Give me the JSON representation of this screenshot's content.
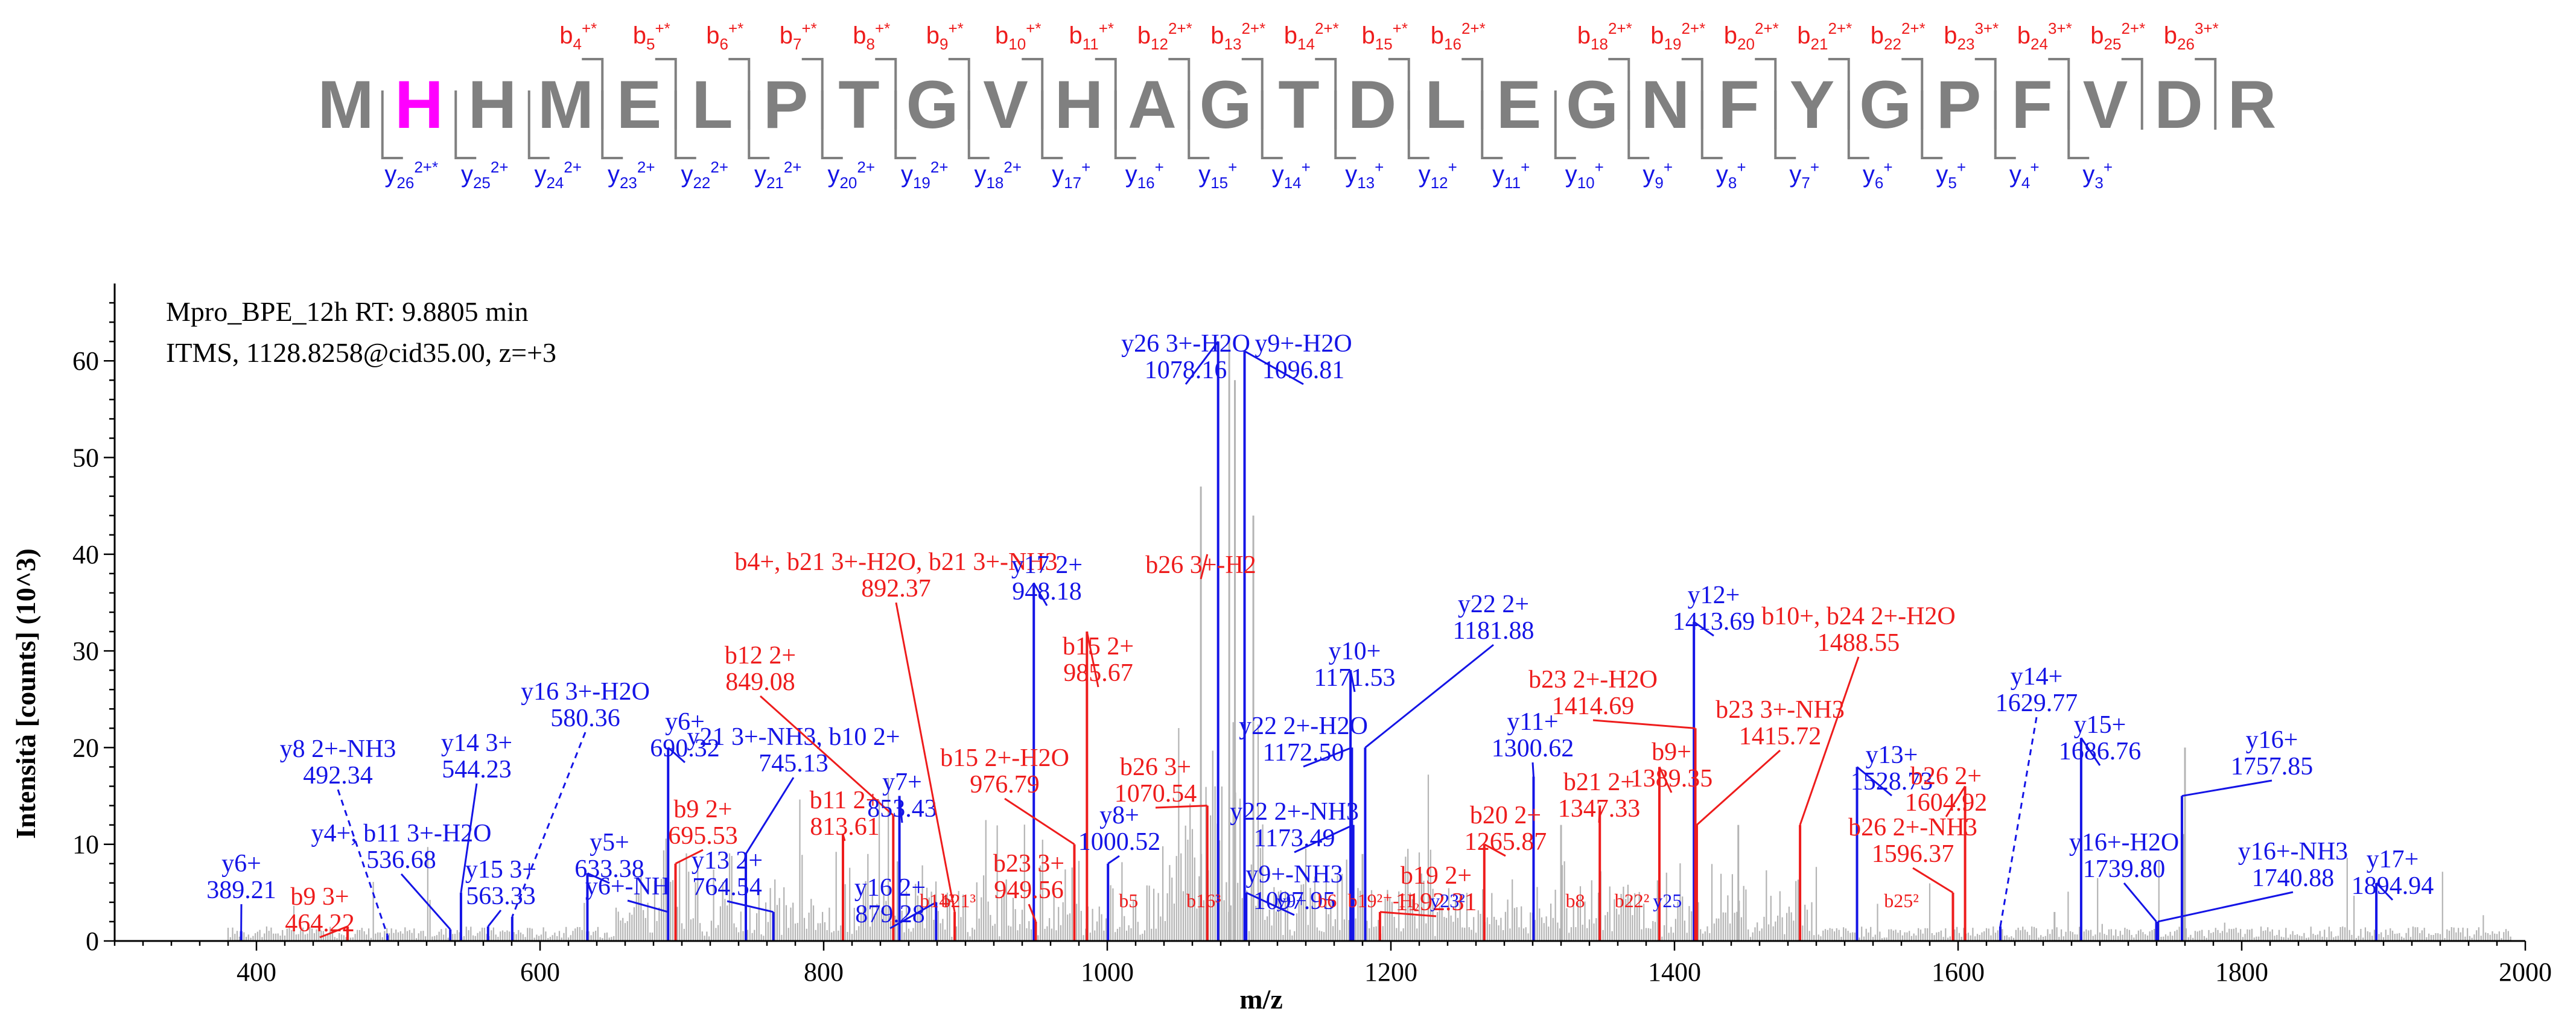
{
  "colors": {
    "b": "#ee1c1c",
    "y": "#1414e6",
    "seq": "#808080",
    "highlight": "#ff00ff",
    "bg_peak": "#b4b4b4"
  },
  "sequence": {
    "residues": [
      "M",
      "H",
      "H",
      "M",
      "E",
      "L",
      "P",
      "T",
      "G",
      "V",
      "H",
      "A",
      "G",
      "T",
      "D",
      "L",
      "E",
      "G",
      "N",
      "F",
      "Y",
      "G",
      "P",
      "F",
      "V",
      "D",
      "R"
    ],
    "highlight_index": 1,
    "b_ions": [
      {
        "after": 4,
        "n": "4",
        "z": "+*"
      },
      {
        "after": 5,
        "n": "5",
        "z": "+*"
      },
      {
        "after": 6,
        "n": "6",
        "z": "+*"
      },
      {
        "after": 7,
        "n": "7",
        "z": "+*"
      },
      {
        "after": 8,
        "n": "8",
        "z": "+*"
      },
      {
        "after": 9,
        "n": "9",
        "z": "+*"
      },
      {
        "after": 10,
        "n": "10",
        "z": "+*"
      },
      {
        "after": 11,
        "n": "11",
        "z": "+*"
      },
      {
        "after": 12,
        "n": "12",
        "z": "2+*"
      },
      {
        "after": 13,
        "n": "13",
        "z": "2+*"
      },
      {
        "after": 14,
        "n": "14",
        "z": "2+*"
      },
      {
        "after": 15,
        "n": "15",
        "z": "+*"
      },
      {
        "after": 16,
        "n": "16",
        "z": "2+*"
      },
      {
        "after": 18,
        "n": "18",
        "z": "2+*"
      },
      {
        "after": 19,
        "n": "19",
        "z": "2+*"
      },
      {
        "after": 20,
        "n": "20",
        "z": "2+*"
      },
      {
        "after": 21,
        "n": "21",
        "z": "2+*"
      },
      {
        "after": 22,
        "n": "22",
        "z": "2+*"
      },
      {
        "after": 23,
        "n": "23",
        "z": "3+*"
      },
      {
        "after": 24,
        "n": "24",
        "z": "3+*"
      },
      {
        "after": 25,
        "n": "25",
        "z": "2+*"
      },
      {
        "after": 26,
        "n": "26",
        "z": "3+*"
      }
    ],
    "y_ions": [
      {
        "after": 1,
        "n": "26",
        "z": "2+*"
      },
      {
        "after": 2,
        "n": "25",
        "z": "2+"
      },
      {
        "after": 3,
        "n": "24",
        "z": "2+"
      },
      {
        "after": 4,
        "n": "23",
        "z": "2+"
      },
      {
        "after": 5,
        "n": "22",
        "z": "2+"
      },
      {
        "after": 6,
        "n": "21",
        "z": "2+"
      },
      {
        "after": 7,
        "n": "20",
        "z": "2+"
      },
      {
        "after": 8,
        "n": "19",
        "z": "2+"
      },
      {
        "after": 9,
        "n": "18",
        "z": "2+"
      },
      {
        "after": 10,
        "n": "17",
        "z": "+"
      },
      {
        "after": 11,
        "n": "16",
        "z": "+"
      },
      {
        "after": 12,
        "n": "15",
        "z": "+"
      },
      {
        "after": 13,
        "n": "14",
        "z": "+"
      },
      {
        "after": 14,
        "n": "13",
        "z": "+"
      },
      {
        "after": 15,
        "n": "12",
        "z": "+"
      },
      {
        "after": 16,
        "n": "11",
        "z": "+"
      },
      {
        "after": 17,
        "n": "10",
        "z": "+"
      },
      {
        "after": 18,
        "n": "9",
        "z": "+"
      },
      {
        "after": 19,
        "n": "8",
        "z": "+"
      },
      {
        "after": 20,
        "n": "7",
        "z": "+"
      },
      {
        "after": 21,
        "n": "6",
        "z": "+"
      },
      {
        "after": 22,
        "n": "5",
        "z": "+"
      },
      {
        "after": 23,
        "n": "4",
        "z": "+"
      },
      {
        "after": 24,
        "n": "3",
        "z": "+"
      }
    ]
  },
  "info": {
    "line1": "Mpro_BPE_12h  RT: 9.8805 min",
    "line2": "ITMS, 1128.8258@cid35.00, z=+3"
  },
  "chart_data": {
    "type": "bar",
    "title": "",
    "xlabel": "m/z",
    "ylabel": "Intensità [counts] (10^3)",
    "xlim": [
      300,
      2000
    ],
    "ylim": [
      0,
      68
    ],
    "xticks": [
      400,
      600,
      800,
      1000,
      1200,
      1400,
      1600,
      1800,
      2000
    ],
    "yticks": [
      0,
      10,
      20,
      30,
      40,
      50,
      60
    ],
    "annotated_peaks": [
      {
        "ion": "y",
        "mz": 389.21,
        "intensity": 1.0
      },
      {
        "ion": "b",
        "mz": 464.22,
        "intensity": 1.5
      },
      {
        "ion": "y",
        "mz": 492.34,
        "intensity": 0.6
      },
      {
        "ion": "y",
        "mz": 536.68,
        "intensity": 1.2
      },
      {
        "ion": "y",
        "mz": 544.23,
        "intensity": 5.0
      },
      {
        "ion": "y",
        "mz": 563.33,
        "intensity": 1.5
      },
      {
        "ion": "y",
        "mz": 580.36,
        "intensity": 2.5
      },
      {
        "ion": "y",
        "mz": 633.38,
        "intensity": 7.0
      },
      {
        "ion": "y",
        "mz": 690.32,
        "intensity": 20.0
      },
      {
        "ion": "b",
        "mz": 695.53,
        "intensity": 8.0
      },
      {
        "ion": "y",
        "mz": 745.13,
        "intensity": 9.0
      },
      {
        "ion": "y",
        "mz": 764.54,
        "intensity": 3.0
      },
      {
        "ion": "b",
        "mz": 813.61,
        "intensity": 11.0
      },
      {
        "ion": "b",
        "mz": 849.08,
        "intensity": 13.0
      },
      {
        "ion": "y",
        "mz": 853.43,
        "intensity": 15.0
      },
      {
        "ion": "y",
        "mz": 879.28,
        "intensity": 4.0
      },
      {
        "ion": "b",
        "mz": 892.37,
        "intensity": 3.0
      },
      {
        "ion": "y",
        "mz": 948.18,
        "intensity": 37.0
      },
      {
        "ion": "b",
        "mz": 949.56,
        "intensity": 2.0
      },
      {
        "ion": "b",
        "mz": 976.79,
        "intensity": 10.0
      },
      {
        "ion": "b",
        "mz": 985.67,
        "intensity": 32.0
      },
      {
        "ion": "y",
        "mz": 1000.52,
        "intensity": 8.0
      },
      {
        "ion": "b",
        "mz": 1070.54,
        "intensity": 14.0
      },
      {
        "ion": "y",
        "mz": 1078.16,
        "intensity": 62.0
      },
      {
        "ion": "y",
        "mz": 1096.81,
        "intensity": 61.0
      },
      {
        "ion": "y",
        "mz": 1097.95,
        "intensity": 5.0
      },
      {
        "ion": "y",
        "mz": 1171.53,
        "intensity": 28.0
      },
      {
        "ion": "y",
        "mz": 1172.5,
        "intensity": 20.0
      },
      {
        "ion": "y",
        "mz": 1173.49,
        "intensity": 12.0
      },
      {
        "ion": "y",
        "mz": 1181.88,
        "intensity": 20.0
      },
      {
        "ion": "b",
        "mz": 1192.31,
        "intensity": 3.0
      },
      {
        "ion": "b",
        "mz": 1265.87,
        "intensity": 10.0
      },
      {
        "ion": "y",
        "mz": 1300.62,
        "intensity": 17.0
      },
      {
        "ion": "b",
        "mz": 1347.33,
        "intensity": 14.0
      },
      {
        "ion": "b",
        "mz": 1389.35,
        "intensity": 18.0
      },
      {
        "ion": "y",
        "mz": 1413.69,
        "intensity": 33.0
      },
      {
        "ion": "b",
        "mz": 1414.69,
        "intensity": 22.0
      },
      {
        "ion": "b",
        "mz": 1415.72,
        "intensity": 12.0
      },
      {
        "ion": "b",
        "mz": 1488.55,
        "intensity": 12.0
      },
      {
        "ion": "y",
        "mz": 1528.73,
        "intensity": 18.0
      },
      {
        "ion": "b",
        "mz": 1596.37,
        "intensity": 5.0
      },
      {
        "ion": "b",
        "mz": 1604.92,
        "intensity": 16.0
      },
      {
        "ion": "y",
        "mz": 1629.77,
        "intensity": 1.5
      },
      {
        "ion": "y",
        "mz": 1686.76,
        "intensity": 21.0
      },
      {
        "ion": "y",
        "mz": 1739.8,
        "intensity": 2.0
      },
      {
        "ion": "y",
        "mz": 1740.88,
        "intensity": 2.0
      },
      {
        "ion": "y",
        "mz": 1757.85,
        "intensity": 15.0
      },
      {
        "ion": "y",
        "mz": 1894.94,
        "intensity": 6.0
      }
    ],
    "small_labels": [
      {
        "ion": "b",
        "mz": 895,
        "label": "b21³"
      },
      {
        "ion": "b",
        "mz": 880,
        "label": "b14²"
      },
      {
        "ion": "b",
        "mz": 1015,
        "label": "b5"
      },
      {
        "ion": "b",
        "mz": 1068,
        "label": "b16³"
      },
      {
        "ion": "y",
        "mz": 1130,
        "label": "y9+"
      },
      {
        "ion": "b",
        "mz": 1155,
        "label": "b6"
      },
      {
        "ion": "b",
        "mz": 1195,
        "label": "b19²⁺-H₂"
      },
      {
        "ion": "y",
        "mz": 1240,
        "label": "y23²"
      },
      {
        "ion": "b",
        "mz": 1330,
        "label": "b8"
      },
      {
        "ion": "b",
        "mz": 1370,
        "label": "b22²"
      },
      {
        "ion": "y",
        "mz": 1395,
        "label": "y25"
      },
      {
        "ion": "b",
        "mz": 1560,
        "label": "b25²"
      }
    ],
    "labels": [
      {
        "ion": "y",
        "text": "y6+",
        "mz_line": "389.21"
      },
      {
        "ion": "b",
        "text": "b9 3+",
        "mz_line": "464.22"
      },
      {
        "ion": "y",
        "text": "y8 2+-NH3",
        "mz_line": "492.34"
      },
      {
        "ion": "y",
        "text": "y4+, b11 3+-H2O",
        "mz_line": "536.68"
      },
      {
        "ion": "y",
        "text": "y14 3+",
        "mz_line": "544.23"
      },
      {
        "ion": "y",
        "text": "y15 3+",
        "mz_line": "563.33"
      },
      {
        "ion": "y",
        "text": "y16 3+-H2O",
        "mz_line": "580.36"
      },
      {
        "ion": "y",
        "text": "y5+",
        "mz_line": "633.38"
      },
      {
        "ion": "y",
        "text": "y6+-NH",
        "mz_line": ""
      },
      {
        "ion": "y",
        "text": "y6+",
        "mz_line": "690.32"
      },
      {
        "ion": "b",
        "text": "b9 2+",
        "mz_line": "695.53"
      },
      {
        "ion": "y",
        "text": "y21 3+-NH3, b10 2+",
        "mz_line": "745.13"
      },
      {
        "ion": "y",
        "text": "y13 2+",
        "mz_line": "764.54"
      },
      {
        "ion": "b",
        "text": "b11 2+",
        "mz_line": "813.61"
      },
      {
        "ion": "b",
        "text": "b12 2+",
        "mz_line": "849.08"
      },
      {
        "ion": "y",
        "text": "y7+",
        "mz_line": "853.43"
      },
      {
        "ion": "y",
        "text": "y16 2+",
        "mz_line": "879.28"
      },
      {
        "ion": "b",
        "text": "b4+, b21 3+-H2O, b21 3+-NH3",
        "mz_line": "892.37"
      },
      {
        "ion": "y",
        "text": "y17 2+",
        "mz_line": "948.18"
      },
      {
        "ion": "b",
        "text": "b23 3+",
        "mz_line": "949.56"
      },
      {
        "ion": "b",
        "text": "b15 2+-H2O",
        "mz_line": "976.79"
      },
      {
        "ion": "b",
        "text": "b15 2+",
        "mz_line": "985.67"
      },
      {
        "ion": "y",
        "text": "y8+",
        "mz_line": "1000.52"
      },
      {
        "ion": "b",
        "text": "b26 3+",
        "mz_line": "1070.54"
      },
      {
        "ion": "b",
        "text": "b26 3+-H2",
        "mz_line": ""
      },
      {
        "ion": "y",
        "text": "y26 3+-H2O",
        "mz_line": "1078.16"
      },
      {
        "ion": "y",
        "text": "y9+-H2O",
        "mz_line": "1096.81"
      },
      {
        "ion": "y",
        "text": "y9+-NH3",
        "mz_line": "1097.95"
      },
      {
        "ion": "y",
        "text": "y10+",
        "mz_line": "1171.53"
      },
      {
        "ion": "y",
        "text": "y22 2+-H2O",
        "mz_line": "1172.50"
      },
      {
        "ion": "y",
        "text": "y22 2+-NH3",
        "mz_line": "1173.49"
      },
      {
        "ion": "y",
        "text": "y22 2+",
        "mz_line": "1181.88"
      },
      {
        "ion": "b",
        "text": "b19 2+",
        "mz_line": "1192.31"
      },
      {
        "ion": "b",
        "text": "b20 2+",
        "mz_line": "1265.87"
      },
      {
        "ion": "y",
        "text": "y11+",
        "mz_line": "1300.62"
      },
      {
        "ion": "b",
        "text": "b21 2+",
        "mz_line": "1347.33"
      },
      {
        "ion": "b",
        "text": "b9+",
        "mz_line": "1389.35"
      },
      {
        "ion": "y",
        "text": "y12+",
        "mz_line": "1413.69"
      },
      {
        "ion": "b",
        "text": "b23 2+-H2O",
        "mz_line": "1414.69"
      },
      {
        "ion": "b",
        "text": "b23 3+-NH3",
        "mz_line": "1415.72"
      },
      {
        "ion": "b",
        "text": "b10+, b24 2+-H2O",
        "mz_line": "1488.55"
      },
      {
        "ion": "y",
        "text": "y13+",
        "mz_line": "1528.73"
      },
      {
        "ion": "b",
        "text": "b26 2+-NH3",
        "mz_line": "1596.37"
      },
      {
        "ion": "b",
        "text": "b26 2+",
        "mz_line": "1604.92"
      },
      {
        "ion": "y",
        "text": "y14+",
        "mz_line": "1629.77"
      },
      {
        "ion": "y",
        "text": "y15+",
        "mz_line": "1686.76"
      },
      {
        "ion": "y",
        "text": "y16+-H2O",
        "mz_line": "1739.80"
      },
      {
        "ion": "y",
        "text": "y16+-NH3",
        "mz_line": "1740.88"
      },
      {
        "ion": "y",
        "text": "y16+",
        "mz_line": "1757.85"
      },
      {
        "ion": "y",
        "text": "y17+",
        "mz_line": "1894.94"
      }
    ]
  }
}
